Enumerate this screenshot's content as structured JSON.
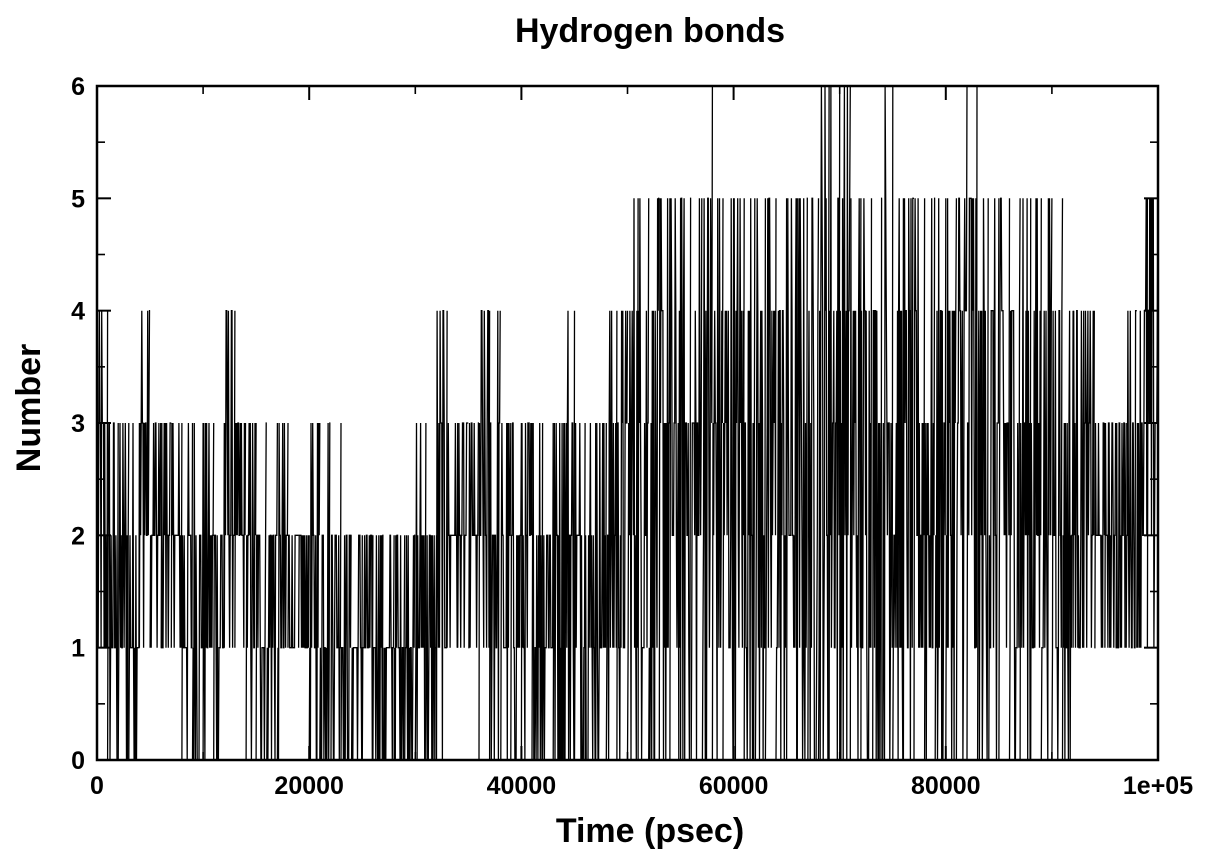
{
  "chart_data": {
    "type": "line",
    "title": "Hydrogen bonds",
    "xlabel": "Time (psec)",
    "ylabel": "Number",
    "xlim": [
      0,
      100000
    ],
    "ylim": [
      0,
      6
    ],
    "xticks": [
      0,
      20000,
      40000,
      60000,
      80000,
      100000
    ],
    "xtick_labels": [
      "0",
      "20000",
      "40000",
      "60000",
      "80000",
      "1e+05"
    ],
    "yticks": [
      0,
      1,
      2,
      3,
      4,
      5,
      6
    ],
    "ytick_labels": [
      "0",
      "1",
      "2",
      "3",
      "4",
      "5",
      "6"
    ],
    "grid": false,
    "legend": "none",
    "line_color": "#000000",
    "series": [
      {
        "x": [
          0,
          1000,
          2000,
          3000,
          4000,
          5000,
          6000,
          7000,
          8000,
          9000,
          10000,
          11000,
          12000,
          13000,
          14000,
          15000,
          16000,
          17000,
          18000,
          19000,
          20000,
          21000,
          22000,
          23000,
          24000,
          25000,
          26000,
          27000,
          28000,
          29000,
          30000,
          31000,
          32000,
          33000,
          34000,
          35000,
          36000,
          37000,
          38000,
          39000,
          40000,
          41000,
          42000,
          43000,
          44000,
          45000,
          46000,
          47000,
          48000,
          49000,
          50000,
          51000,
          52000,
          53000,
          54000,
          55000,
          56000,
          57000,
          58000,
          59000,
          60000,
          61000,
          62000,
          63000,
          64000,
          65000,
          66000,
          67000,
          68000,
          69000,
          70000,
          71000,
          72000,
          73000,
          74000,
          75000,
          76000,
          77000,
          78000,
          79000,
          80000,
          81000,
          82000,
          83000,
          84000,
          85000,
          86000,
          87000,
          88000,
          89000,
          90000,
          91000,
          92000,
          93000,
          94000,
          95000,
          96000,
          97000,
          98000,
          99000,
          100000
        ],
        "y_min": [
          0,
          0,
          0,
          0,
          1,
          1,
          1,
          1,
          0,
          0,
          0,
          0,
          1,
          1,
          0,
          0,
          0,
          0,
          1,
          1,
          0,
          0,
          0,
          0,
          0,
          0,
          0,
          0,
          0,
          0,
          0,
          0,
          0,
          1,
          1,
          1,
          0,
          0,
          0,
          0,
          0,
          0,
          0,
          0,
          0,
          0,
          0,
          0,
          0,
          0,
          0,
          0,
          0,
          0,
          0,
          0,
          0,
          0,
          0,
          0,
          0,
          0,
          0,
          0,
          0,
          0,
          0,
          0,
          0,
          0,
          0,
          0,
          0,
          0,
          0,
          0,
          0,
          0,
          0,
          0,
          0,
          0,
          0,
          0,
          0,
          0,
          0,
          0,
          0,
          0,
          0,
          0,
          1,
          1,
          1,
          1,
          1,
          1,
          1,
          1,
          1
        ],
        "y_max": [
          4,
          3,
          3,
          3,
          4,
          3,
          3,
          3,
          3,
          3,
          3,
          3,
          4,
          3,
          3,
          3,
          3,
          3,
          2,
          2,
          3,
          3,
          3,
          2,
          2,
          2,
          2,
          2,
          2,
          2,
          3,
          2,
          4,
          3,
          3,
          3,
          4,
          4,
          3,
          3,
          3,
          3,
          3,
          3,
          4,
          3,
          3,
          3,
          4,
          4,
          5,
          5,
          5,
          5,
          5,
          5,
          5,
          6,
          5,
          5,
          5,
          5,
          5,
          5,
          5,
          5,
          5,
          5,
          6,
          6,
          6,
          5,
          5,
          5,
          6,
          5,
          5,
          5,
          5,
          5,
          5,
          6,
          6,
          5,
          5,
          5,
          5,
          5,
          5,
          5,
          5,
          4,
          4,
          4,
          3,
          3,
          3,
          4,
          5,
          5,
          5
        ]
      }
    ]
  }
}
